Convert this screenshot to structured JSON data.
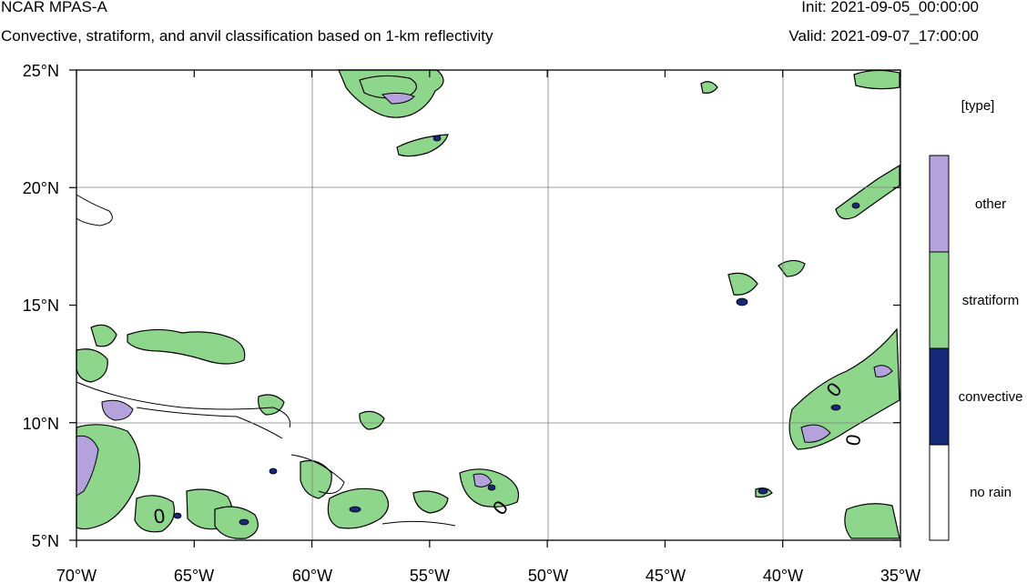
{
  "header": {
    "title": "NCAR MPAS-A",
    "subtitle": "Convective, stratiform, and anvil classification based on 1-km reflectivity",
    "init": "Init: 2021-09-05_00:00:00",
    "valid": "Valid: 2021-09-07_17:00:00"
  },
  "map": {
    "lon_range": [
      -70,
      -35
    ],
    "lat_range": [
      5,
      25
    ],
    "x_ticks": [
      {
        "value": -70,
        "label": "70°W"
      },
      {
        "value": -65,
        "label": "65°W"
      },
      {
        "value": -60,
        "label": "60°W"
      },
      {
        "value": -55,
        "label": "55°W"
      },
      {
        "value": -50,
        "label": "50°W"
      },
      {
        "value": -45,
        "label": "45°W"
      },
      {
        "value": -40,
        "label": "40°W"
      },
      {
        "value": -35,
        "label": "35°W"
      }
    ],
    "y_ticks": [
      {
        "value": 25,
        "label": "25°N"
      },
      {
        "value": 20,
        "label": "20°N"
      },
      {
        "value": 15,
        "label": "15°N"
      },
      {
        "value": 10,
        "label": "10°N"
      },
      {
        "value": 5,
        "label": "5°N"
      }
    ],
    "grid_lons": [
      -60,
      -50,
      -40
    ],
    "grid_lats": [
      20,
      10
    ],
    "contour_labels": [
      "0",
      "0",
      "0",
      "0"
    ]
  },
  "legend": {
    "title": "[type]",
    "entries": [
      {
        "label": "other",
        "color": "#b3a2db"
      },
      {
        "label": "stratiform",
        "color": "#8fd68d"
      },
      {
        "label": "convective",
        "color": "#182878"
      },
      {
        "label": "no rain",
        "color": "#ffffff"
      }
    ]
  },
  "colors": {
    "other": "#b3a2db",
    "stratiform": "#8fd68d",
    "convective": "#182878",
    "outline": "#000000"
  }
}
